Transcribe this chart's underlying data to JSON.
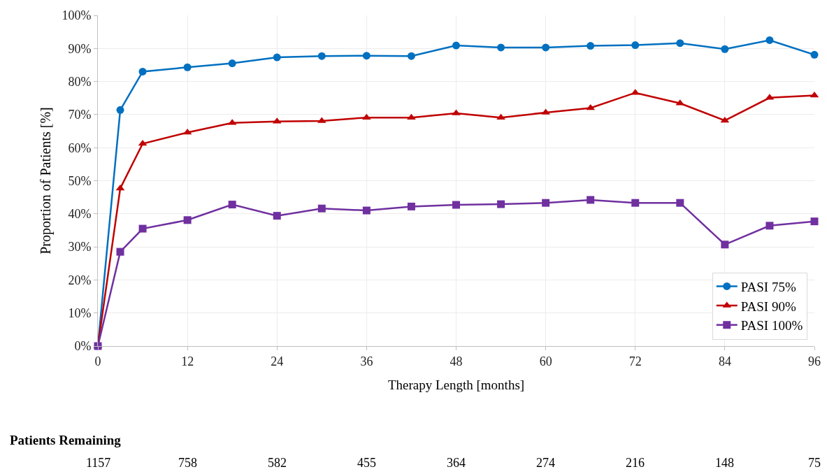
{
  "chart_data": {
    "type": "line",
    "xlabel": "Therapy Length [months]",
    "ylabel": "Proportion of Patients [%]",
    "x": [
      0,
      3,
      6,
      12,
      18,
      24,
      30,
      36,
      42,
      48,
      54,
      60,
      66,
      72,
      78,
      84,
      90,
      96
    ],
    "series": [
      {
        "name": "PASI 75%",
        "color": "#0070c0",
        "marker": "circle",
        "values": [
          0,
          71.4,
          83,
          84.3,
          85.5,
          87.3,
          87.7,
          87.8,
          87.7,
          90.9,
          90.3,
          90.3,
          90.8,
          91,
          91.6,
          89.8,
          92.5,
          88.1
        ]
      },
      {
        "name": "PASI 90%",
        "color": "#c00000",
        "marker": "triangle",
        "values": [
          0,
          47.7,
          61.2,
          64.6,
          67.5,
          67.9,
          68.1,
          69.1,
          69.1,
          70.4,
          69.1,
          70.6,
          72,
          76.6,
          73.4,
          68.2,
          75.1,
          75.8
        ]
      },
      {
        "name": "PASI 100%",
        "color": "#7030a0",
        "marker": "square",
        "values": [
          0,
          28.5,
          35.5,
          38.1,
          42.8,
          39.4,
          41.6,
          41,
          42.2,
          42.7,
          42.9,
          43.3,
          44.2,
          43.3,
          43.3,
          30.7,
          36.4,
          37.7
        ]
      }
    ],
    "xlim": [
      0,
      96
    ],
    "xticks": [
      0,
      12,
      24,
      36,
      48,
      60,
      72,
      84,
      96
    ],
    "ylim": [
      0,
      100
    ],
    "yticks": [
      {
        "value": 0,
        "label": "0%"
      },
      {
        "value": 10,
        "label": "10%"
      },
      {
        "value": 20,
        "label": "20%"
      },
      {
        "value": 30,
        "label": "30%"
      },
      {
        "value": 40,
        "label": "40%"
      },
      {
        "value": 50,
        "label": "50%"
      },
      {
        "value": 60,
        "label": "60%"
      },
      {
        "value": 70,
        "label": "70%"
      },
      {
        "value": 80,
        "label": "80%"
      },
      {
        "value": 90,
        "label": "90%"
      },
      {
        "value": 100,
        "label": "100%"
      }
    ],
    "grid": true,
    "legend": "bottom right",
    "line_style": "solid",
    "annotations": [
      "Patients Remaining",
      "1157",
      "758",
      "582",
      "455",
      "364",
      "274",
      "216",
      "148",
      "75"
    ]
  }
}
